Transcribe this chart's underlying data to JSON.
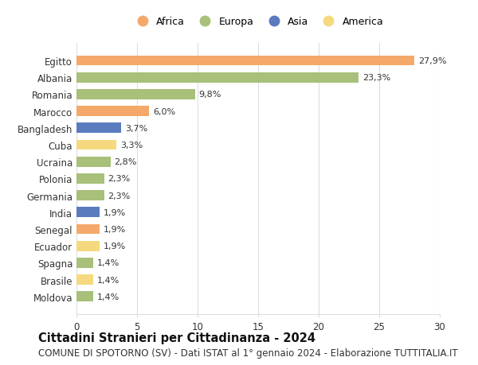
{
  "categories": [
    "Egitto",
    "Albania",
    "Romania",
    "Marocco",
    "Bangladesh",
    "Cuba",
    "Ucraina",
    "Polonia",
    "Germania",
    "India",
    "Senegal",
    "Ecuador",
    "Spagna",
    "Brasile",
    "Moldova"
  ],
  "values": [
    27.9,
    23.3,
    9.8,
    6.0,
    3.7,
    3.3,
    2.8,
    2.3,
    2.3,
    1.9,
    1.9,
    1.9,
    1.4,
    1.4,
    1.4
  ],
  "labels": [
    "27,9%",
    "23,3%",
    "9,8%",
    "6,0%",
    "3,7%",
    "3,3%",
    "2,8%",
    "2,3%",
    "2,3%",
    "1,9%",
    "1,9%",
    "1,9%",
    "1,4%",
    "1,4%",
    "1,4%"
  ],
  "continents": [
    "Africa",
    "Europa",
    "Europa",
    "Africa",
    "Asia",
    "America",
    "Europa",
    "Europa",
    "Europa",
    "Asia",
    "Africa",
    "America",
    "Europa",
    "America",
    "Europa"
  ],
  "continent_colors": {
    "Africa": "#F4A96A",
    "Europa": "#A8C07A",
    "Asia": "#5B7BBF",
    "America": "#F5D97E"
  },
  "legend_order": [
    "Africa",
    "Europa",
    "Asia",
    "America"
  ],
  "title": "Cittadini Stranieri per Cittadinanza - 2024",
  "subtitle": "COMUNE DI SPOTORNO (SV) - Dati ISTAT al 1° gennaio 2024 - Elaborazione TUTTITALIA.IT",
  "xlim": [
    0,
    30
  ],
  "xticks": [
    0,
    5,
    10,
    15,
    20,
    25,
    30
  ],
  "background_color": "#ffffff",
  "grid_color": "#dddddd",
  "bar_height": 0.6,
  "title_fontsize": 10.5,
  "subtitle_fontsize": 8.5,
  "label_fontsize": 8,
  "tick_fontsize": 8.5,
  "legend_fontsize": 9
}
